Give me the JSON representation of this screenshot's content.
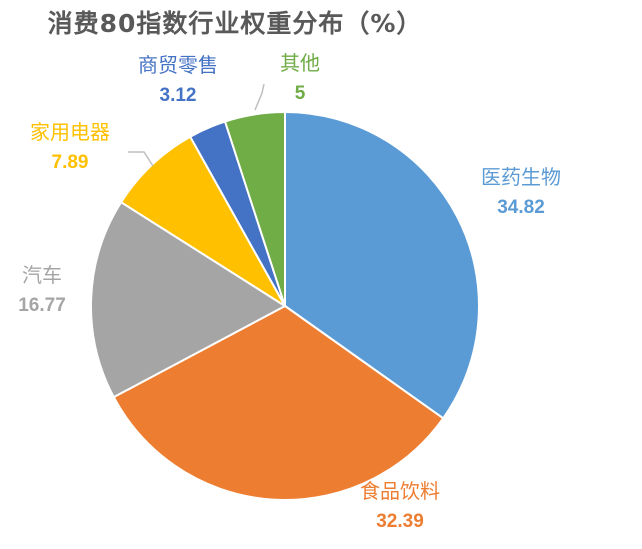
{
  "chart_data": {
    "type": "pie",
    "title": "消费80指数行业权重分布（%）",
    "slices": [
      {
        "label": "医药生物",
        "value": 34.82,
        "value_text": "34.82",
        "color": "#5b9bd5"
      },
      {
        "label": "食品饮料",
        "value": 32.39,
        "value_text": "32.39",
        "color": "#ed7d31"
      },
      {
        "label": "汽车",
        "value": 16.77,
        "value_text": "16.77",
        "color": "#a5a5a5"
      },
      {
        "label": "家用电器",
        "value": 7.89,
        "value_text": "7.89",
        "color": "#ffc000"
      },
      {
        "label": "商贸零售",
        "value": 3.12,
        "value_text": "3.12",
        "color": "#4472c4"
      },
      {
        "label": "其他",
        "value": 5,
        "value_text": "5",
        "color": "#70ad47"
      }
    ],
    "start_angle": "12 o'clock",
    "direction": "clockwise",
    "legend": "none",
    "data_labels": "outside, colored to match slices"
  }
}
